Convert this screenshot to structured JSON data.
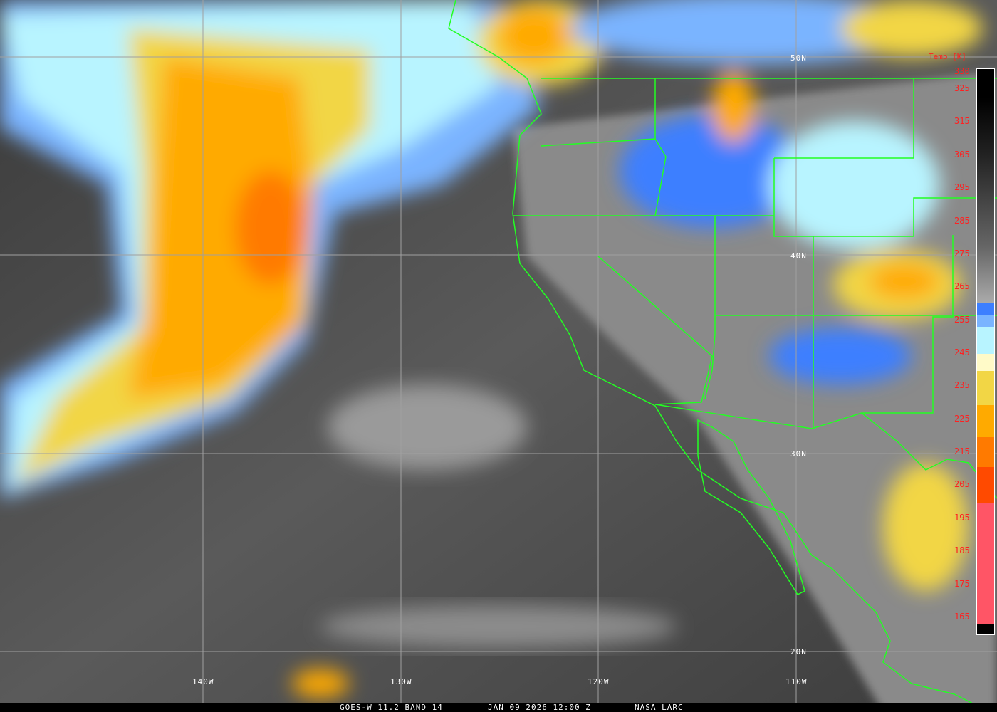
{
  "caption": {
    "product": "GOES-W 11.2 BAND 14",
    "datetime": "JAN 09 2026 12:00 Z",
    "credit": "NASA LARC"
  },
  "colorbar": {
    "title": "Temp [K]",
    "ticks": [
      "330",
      "325",
      "315",
      "305",
      "295",
      "285",
      "275",
      "265",
      "255",
      "245",
      "235",
      "225",
      "215",
      "205",
      "195",
      "185",
      "175",
      "165"
    ],
    "colors": {
      "blue": "#3d7fff",
      "light_blue": "#7ab4ff",
      "pale_cyan": "#b8f4ff",
      "cream": "#fffac8",
      "yellow": "#f2d645",
      "orange": "#ffaa00",
      "dark_orange": "#ff7a00",
      "red_orange": "#ff4a00",
      "pink": "#ff5566"
    }
  },
  "grid": {
    "latitudes": [
      "50N",
      "40N",
      "30N",
      "20N"
    ],
    "longitudes": [
      "140W",
      "130W",
      "120W",
      "110W"
    ]
  },
  "boundary_color": "#22ff22",
  "grid_color": "#a0a0a0"
}
